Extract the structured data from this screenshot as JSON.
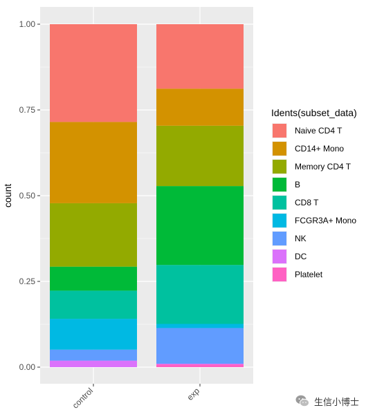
{
  "chart_data": {
    "type": "bar",
    "stacked": true,
    "categories": [
      "control",
      "exp"
    ],
    "ylabel": "count",
    "xlabel": "",
    "ylim": [
      0,
      1
    ],
    "yticks": [
      "0.00",
      "0.25",
      "0.50",
      "0.75",
      "1.00"
    ],
    "ytick_values": [
      0,
      0.25,
      0.5,
      0.75,
      1.0
    ],
    "grid": true,
    "legend_title": "Idents(subset_data)",
    "legend_position": "right",
    "series": [
      {
        "name": "Naive CD4 T",
        "color": "#F8766D",
        "values": [
          0.285,
          0.188
        ]
      },
      {
        "name": "CD14+ Mono",
        "color": "#D39200",
        "values": [
          0.237,
          0.108
        ]
      },
      {
        "name": "Memory CD4 T",
        "color": "#93AA00",
        "values": [
          0.185,
          0.176
        ]
      },
      {
        "name": "B",
        "color": "#00BA38",
        "values": [
          0.07,
          0.23
        ]
      },
      {
        "name": "CD8 T",
        "color": "#00C19F",
        "values": [
          0.082,
          0.172
        ]
      },
      {
        "name": "FCGR3A+ Mono",
        "color": "#00B9E3",
        "values": [
          0.09,
          0.012
        ]
      },
      {
        "name": "NK",
        "color": "#619CFF",
        "values": [
          0.032,
          0.104
        ]
      },
      {
        "name": "DC",
        "color": "#DB72FB",
        "values": [
          0.019,
          0.002
        ]
      },
      {
        "name": "Platelet",
        "color": "#FF61C3",
        "values": [
          0.0,
          0.008
        ]
      }
    ]
  },
  "watermark": {
    "text": "生信小博士",
    "icon": "wechat-icon"
  }
}
